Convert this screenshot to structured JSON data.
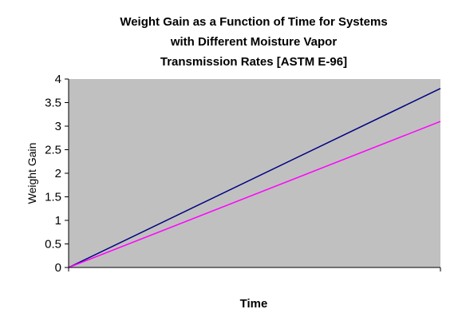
{
  "chart_data": {
    "type": "line",
    "title_lines": [
      "Weight Gain as a Function of Time for Systems",
      "with Different Moisture Vapor",
      "Transmission Rates [ASTM E-96]"
    ],
    "xlabel": "Time",
    "ylabel": "Weight Gain",
    "x": [
      0,
      1
    ],
    "series": [
      {
        "values": [
          0,
          3.8
        ],
        "color": "#000080"
      },
      {
        "values": [
          0,
          3.1
        ],
        "color": "#ff00ff"
      }
    ],
    "ylim": [
      0,
      4
    ],
    "yticks": [
      "0",
      "0.5",
      "1",
      "1.5",
      "2",
      "2.5",
      "3",
      "3.5",
      "4"
    ],
    "plot_background": "#c0c0c0",
    "grid": false,
    "legend": "none"
  }
}
